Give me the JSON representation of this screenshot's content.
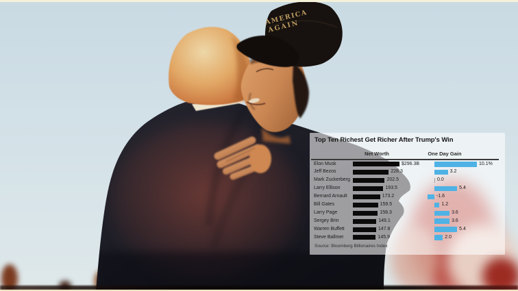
{
  "photo": {
    "hat_text_line1": "AMERICA",
    "hat_text_line2": "AGAIN"
  },
  "chart": {
    "title": "Top Ten Richest Get Richer After Trump's Win",
    "col_networth": "Net Worth",
    "col_gain": "One Day Gain",
    "source": "Source: Bloomberg Billionaires Index"
  },
  "chart_data": {
    "type": "bar",
    "title": "Top Ten Richest Get Richer After Trump's Win",
    "columns": [
      "Net Worth",
      "One Day Gain"
    ],
    "categories": [
      "Elon Musk",
      "Jeff Bezos",
      "Mark Zuckerberg",
      "Larry Ellison",
      "Bernard Arnault",
      "Bill Gates",
      "Larry Page",
      "Sergey Brin",
      "Warren Buffett",
      "Steve Ballmer"
    ],
    "series": [
      {
        "name": "Net Worth",
        "unit": "$B",
        "values": [
          296.3,
          228.3,
          202.5,
          193.5,
          173.2,
          159.5,
          158.3,
          149.1,
          147.8,
          145.9
        ],
        "labels": [
          "$296.3B",
          "228.3",
          "202.5",
          "193.5",
          "173.2",
          "159.5",
          "158.3",
          "149.1",
          "147.8",
          "145.9"
        ]
      },
      {
        "name": "One Day Gain",
        "unit": "%",
        "values": [
          10.1,
          3.2,
          0.0,
          5.4,
          -1.6,
          1.2,
          3.6,
          3.6,
          5.4,
          2.0
        ],
        "labels": [
          "10.1%",
          "3.2",
          "0.0",
          "5.4",
          "-1.6",
          "1.2",
          "3.6",
          "3.6",
          "5.4",
          "2.0"
        ]
      }
    ],
    "source": "Source: Bloomberg Billionaires Index",
    "colors": {
      "net_worth_bar": "#0b0b0b",
      "gain_bar": "#4fb2e5",
      "zero_tick": "#9aa0a6"
    },
    "layout": {
      "legend": false,
      "grid": false,
      "orientation": "horizontal"
    }
  }
}
